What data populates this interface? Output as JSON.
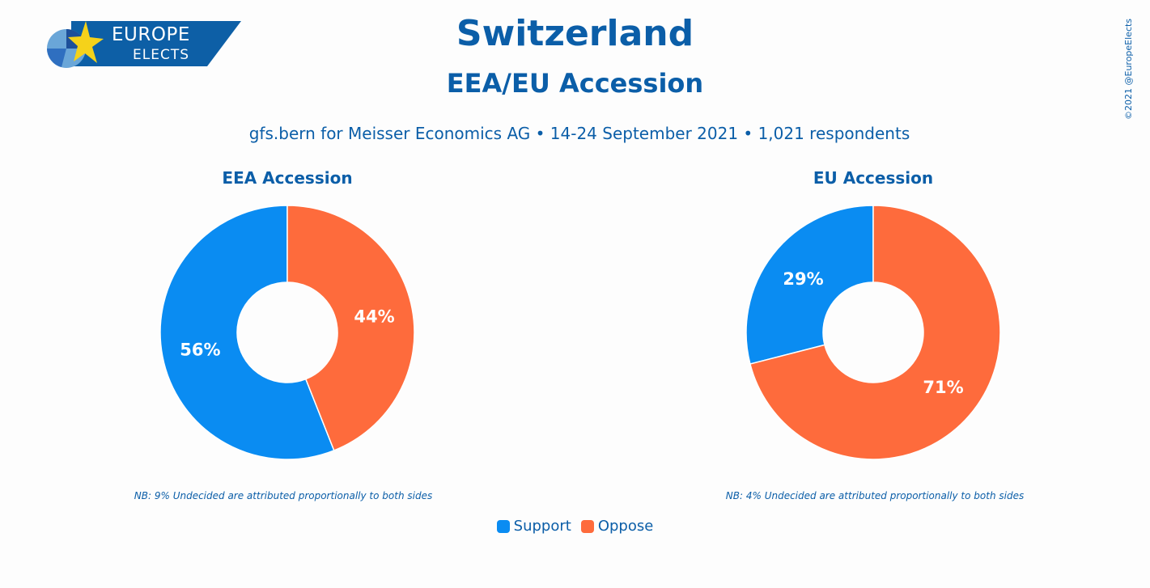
{
  "logo": {
    "line1": "EUROPE",
    "line2": "ELECTS"
  },
  "title": "Switzerland",
  "subtitle": "EEA/EU Accession",
  "source": "gfs.bern for Meisser Economics AG  •  14-24 September 2021  •  1,021 respondents",
  "copyright": "©2021 @EuropeElects",
  "colors": {
    "support": "#0a8cf2",
    "oppose": "#fe6b3c",
    "text": "#0b5ea8"
  },
  "legend": [
    {
      "label": "Support",
      "color": "#0a8cf2"
    },
    {
      "label": "Oppose",
      "color": "#fe6b3c"
    }
  ],
  "chart_data": [
    {
      "type": "pie",
      "title": "EEA Accession",
      "categories": [
        "Support",
        "Oppose"
      ],
      "values": [
        56,
        44
      ],
      "labels": [
        "56%",
        "44%"
      ],
      "note": "NB: 9% Undecided are attributed proportionally to both sides"
    },
    {
      "type": "pie",
      "title": "EU Accession",
      "categories": [
        "Support",
        "Oppose"
      ],
      "values": [
        29,
        71
      ],
      "labels": [
        "29%",
        "71%"
      ],
      "note": "NB: 4% Undecided are attributed proportionally to both sides"
    }
  ]
}
